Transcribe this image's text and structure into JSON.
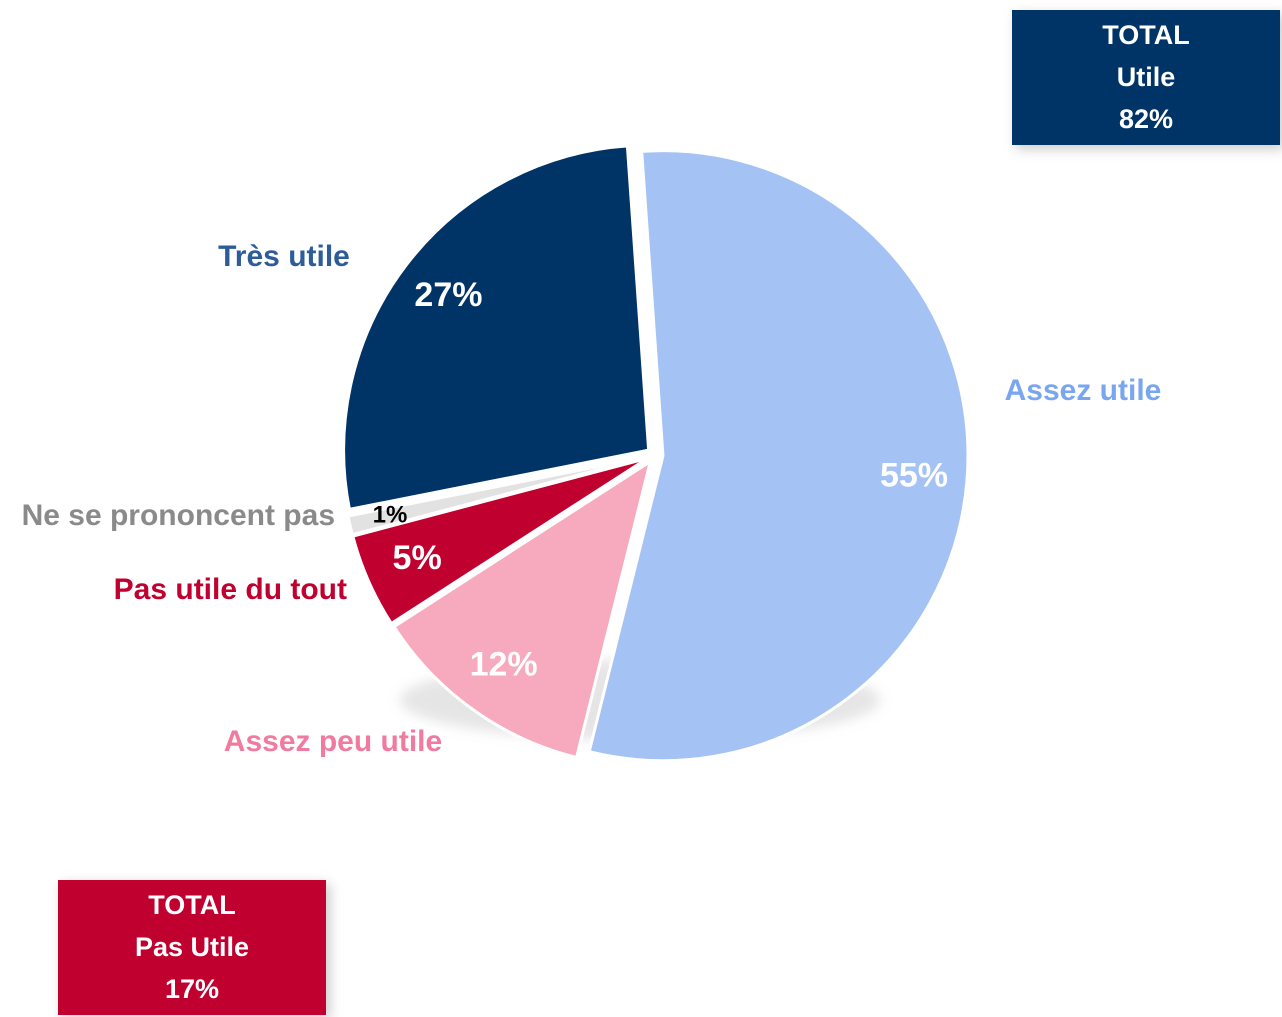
{
  "chart_data": {
    "type": "pie",
    "categories": [
      "Assez utile",
      "Assez peu utile",
      "Pas utile du tout",
      "Ne se prononcent pas",
      "Très utile"
    ],
    "values": [
      55,
      12,
      5,
      1,
      27
    ],
    "value_labels": [
      "55%",
      "12%",
      "5%",
      "1%",
      "27%"
    ],
    "colors": [
      "#a4c2f4",
      "#f7a9bd",
      "#c0002f",
      "#e2e2e2",
      "#003366"
    ],
    "totals": [
      {
        "lines": [
          "TOTAL",
          "Utile",
          "82%"
        ],
        "color": "#003366"
      },
      {
        "lines": [
          "TOTAL",
          "Pas Utile",
          "17%"
        ],
        "color": "#c0002f"
      }
    ]
  }
}
